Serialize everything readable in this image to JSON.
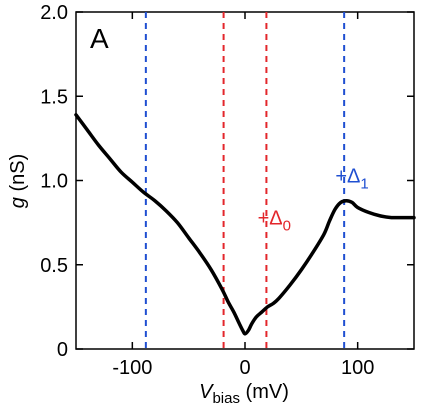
{
  "chart_data": {
    "type": "line",
    "panel_label": "A",
    "xlabel": {
      "main": "V",
      "sub": "bias",
      "unit": " (mV)"
    },
    "ylabel": {
      "main": "g",
      "unit": " (nS)"
    },
    "xlim": [
      -150,
      150
    ],
    "ylim": [
      0,
      2.0
    ],
    "xticks": [
      -100,
      0,
      100
    ],
    "xtick_labels": [
      "-100",
      "0",
      "100"
    ],
    "yticks": [
      0,
      0.5,
      1.0,
      1.5,
      2.0
    ],
    "ytick_labels": [
      "0",
      "0.5",
      "1.0",
      "1.5",
      "2.0"
    ],
    "grid": false,
    "series": [
      {
        "color": "#000000",
        "x": [
          -150,
          -140,
          -130,
          -120,
          -110,
          -100,
          -90,
          -80,
          -70,
          -60,
          -50,
          -40,
          -30,
          -20,
          -15,
          -10,
          -5,
          -2,
          0,
          3,
          6,
          10,
          15,
          20,
          25,
          30,
          40,
          50,
          60,
          70,
          75,
          80,
          85,
          90,
          95,
          100,
          110,
          120,
          130,
          140,
          150
        ],
        "y": [
          1.39,
          1.3,
          1.21,
          1.13,
          1.05,
          0.99,
          0.93,
          0.88,
          0.82,
          0.75,
          0.66,
          0.57,
          0.47,
          0.35,
          0.28,
          0.22,
          0.15,
          0.11,
          0.09,
          0.11,
          0.15,
          0.19,
          0.22,
          0.25,
          0.27,
          0.3,
          0.38,
          0.47,
          0.57,
          0.68,
          0.76,
          0.83,
          0.87,
          0.88,
          0.87,
          0.84,
          0.81,
          0.79,
          0.78,
          0.78,
          0.78
        ]
      }
    ],
    "vlines": [
      {
        "x": -88,
        "color": "#1f4fd1"
      },
      {
        "x": 88,
        "color": "#1f4fd1"
      },
      {
        "x": -19,
        "color": "#e3262b"
      },
      {
        "x": 19,
        "color": "#e3262b"
      }
    ],
    "annotations": [
      {
        "text": "+Δ",
        "sub": "0",
        "x": 26,
        "y": 0.78,
        "color": "#e3262b"
      },
      {
        "text": "+Δ",
        "sub": "1",
        "x": 95,
        "y": 1.03,
        "color": "#1f4fd1"
      }
    ]
  }
}
